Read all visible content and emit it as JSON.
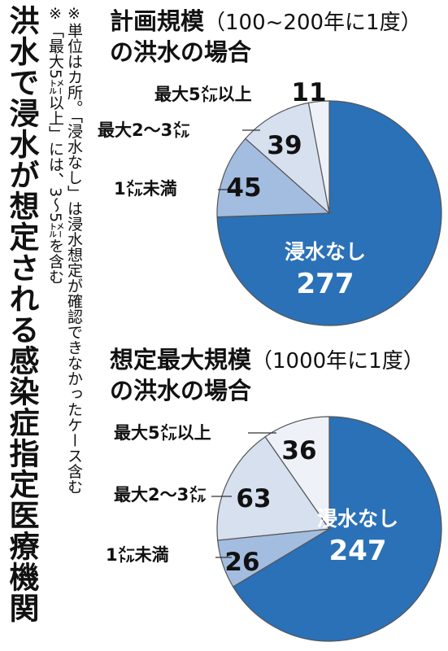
{
  "title": "洪水で浸水が想定される感染症指定医療機関",
  "notes": [
    "※単位はカ所。「浸水なし」は浸水想定が確認できなかったケース含む",
    "※「最大5㍍以上」には、3～5㍍を含む"
  ],
  "chart_data": [
    {
      "type": "pie",
      "title": "計画規模",
      "title_paren": "（100~200年に1度）",
      "subtitle": "の洪水の場合",
      "slices": [
        {
          "label": "浸水なし",
          "value": 277,
          "color": "#2a71b8"
        },
        {
          "label": "1㍍未満",
          "value": 45,
          "color": "#a3bde0"
        },
        {
          "label": "最大2～3㍍",
          "value": 39,
          "color": "#d6e0ef"
        },
        {
          "label": "最大5㍍以上",
          "value": 11,
          "color": "#eef2f8"
        }
      ]
    },
    {
      "type": "pie",
      "title": "想定最大規模",
      "title_paren": "（1000年に1度）",
      "subtitle": "の洪水の場合",
      "slices": [
        {
          "label": "浸水なし",
          "value": 247,
          "color": "#2a71b8"
        },
        {
          "label": "1㍍未満",
          "value": 26,
          "color": "#a3bde0"
        },
        {
          "label": "最大2～3㍍",
          "value": 63,
          "color": "#d6e0ef"
        },
        {
          "label": "最大5㍍以上",
          "value": 36,
          "color": "#eef2f8"
        }
      ]
    }
  ]
}
